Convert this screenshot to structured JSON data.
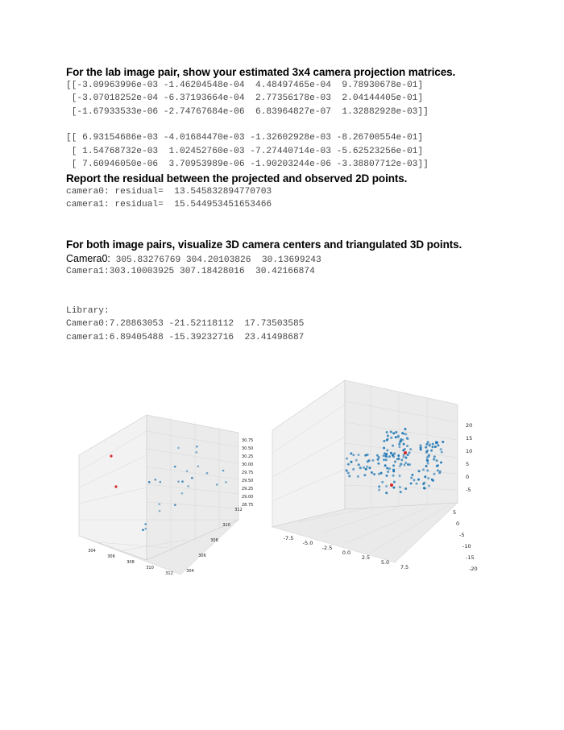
{
  "section1": {
    "heading": "For the lab image pair, show your estimated 3x4 camera projection matrices.",
    "matrix0": [
      "[[-3.09963996e-03 -1.46204548e-04  4.48497465e-04  9.78930678e-01]",
      " [-3.07018252e-04 -6.37193664e-04  2.77356178e-03  2.04144405e-01]",
      " [-1.67933533e-06 -2.74767684e-06  6.83964827e-07  1.32882928e-03]]"
    ],
    "matrix1": [
      "[[ 6.93154686e-03 -4.01684470e-03 -1.32602928e-03 -8.26700554e-01]",
      " [ 1.54768732e-03  1.02452760e-03 -7.27440714e-03 -5.62523256e-01]",
      " [ 7.60946050e-06  3.70953989e-06 -1.90203244e-06 -3.38807712e-03]]"
    ]
  },
  "section2": {
    "heading": "Report the residual between the projected and observed 2D points.",
    "lines": [
      "camera0: residual=  13.545832894770703",
      "camera1: residual=  15.544953451653466"
    ]
  },
  "section3": {
    "heading": "For both image pairs, visualize 3D camera centers and triangulated 3D points.",
    "camera0_label": "Camera0:",
    "camera0_values": " 305.83276769 304.20103826  30.13699243",
    "camera1_line": "Camera1:303.10003925 307.18428016  30.42166874",
    "library_label": "Library:",
    "library_lines": [
      "Camera0:7.28863053 -21.52118112  17.73503585",
      "camera1:6.89405488 -15.39232716  23.41498687"
    ]
  },
  "plots": {
    "point_color": "#1f77b4",
    "camera_color": "#d62728",
    "left": {
      "x_ticks": [
        "304",
        "306",
        "308",
        "310",
        "312"
      ],
      "y_ticks": [
        "304",
        "306",
        "308",
        "310",
        "312"
      ],
      "z_ticks": [
        "30.75",
        "30.50",
        "30.25",
        "30.00",
        "29.75",
        "29.50",
        "29.25",
        "29.00",
        "28.75"
      ]
    },
    "right": {
      "x_ticks": [
        "-7.5",
        "-5.0",
        "-2.5",
        "0.0",
        "2.5",
        "5.0",
        "7.5"
      ],
      "y_ticks": [
        "-20",
        "-15",
        "-10",
        "-5",
        "0",
        "5"
      ],
      "z_ticks": [
        "20",
        "15",
        "10",
        "5",
        "0",
        "-5"
      ]
    }
  }
}
